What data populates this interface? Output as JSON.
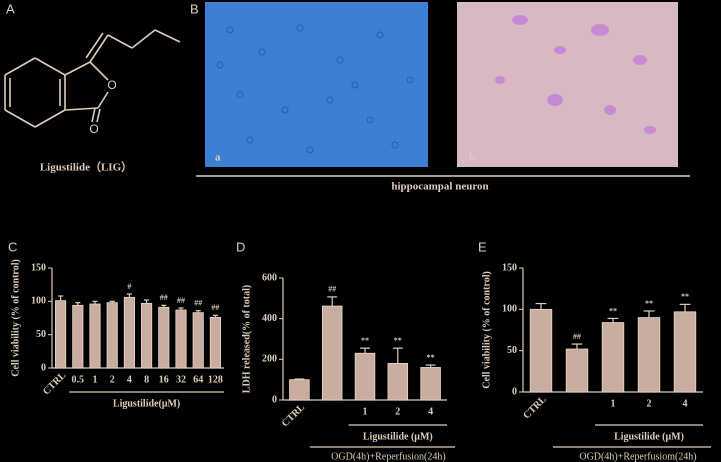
{
  "panels": {
    "A": {
      "letter": "A",
      "atoms": [
        "O",
        "O"
      ],
      "caption": "Ligustilide（LIG）"
    },
    "B": {
      "letter": "B",
      "images": [
        {
          "label": "a"
        },
        {
          "label": "b"
        }
      ],
      "caption": "hippocampal neuron"
    }
  },
  "chart_data": [
    {
      "panel": "C",
      "type": "bar",
      "ylabel": "Cell viability  (% of control)",
      "xlabel": "Ligustilide(μM)",
      "categories": [
        "CTRL",
        "0.5",
        "1",
        "2",
        "4",
        "8",
        "16",
        "32",
        "64",
        "128"
      ],
      "values": [
        101,
        94,
        96,
        98,
        106,
        97,
        91,
        87,
        83,
        76
      ],
      "errors": [
        7,
        4,
        4,
        2,
        5,
        5,
        3,
        3,
        3,
        3
      ],
      "annotations": [
        null,
        null,
        null,
        null,
        "#",
        null,
        "##",
        "##",
        "##",
        "##"
      ],
      "ylim": [
        0,
        150
      ],
      "yticks": [
        0,
        50,
        100,
        150
      ],
      "color": "#c8ada0"
    },
    {
      "panel": "D",
      "type": "bar",
      "ylabel": "LDH released(% of total)",
      "xlabel": "Ligustilide (μM)",
      "condition": "OGD(4h)+Reperfusion(24h)",
      "categories": [
        "CTRL",
        null,
        "1",
        "2",
        "4"
      ],
      "values": [
        100,
        462,
        230,
        180,
        160
      ],
      "errors": [
        3,
        45,
        25,
        75,
        12
      ],
      "annotations": [
        null,
        "##",
        "**",
        "**",
        "**"
      ],
      "ylim": [
        0,
        600
      ],
      "yticks": [
        0,
        200,
        400,
        600
      ],
      "color": "#c8ada0"
    },
    {
      "panel": "E",
      "type": "bar",
      "ylabel": "Cell viability  (% of control)",
      "xlabel": "Ligustilide (μM)",
      "condition": "OGD(4h)+Reperfusiom(24h)",
      "categories": [
        "CTRL",
        null,
        "1",
        "2",
        "4"
      ],
      "values": [
        100,
        52,
        84,
        90,
        97
      ],
      "errors": [
        7,
        6,
        5,
        8,
        9
      ],
      "annotations": [
        null,
        "##",
        "**",
        "**",
        "**"
      ],
      "ylim": [
        0,
        150
      ],
      "yticks": [
        0,
        50,
        100,
        150
      ],
      "color": "#c8ada0"
    }
  ]
}
